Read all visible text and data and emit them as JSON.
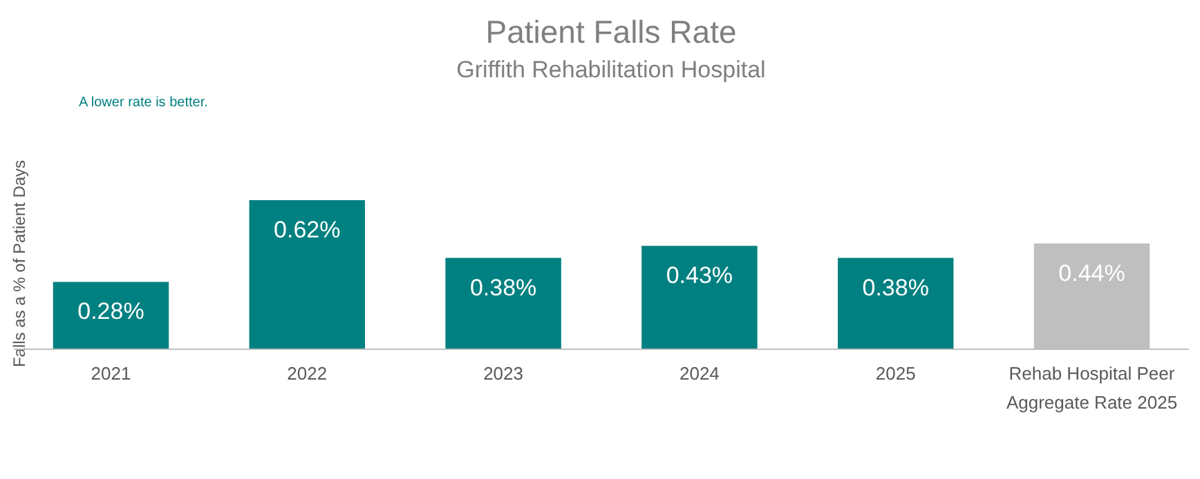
{
  "chart_data": {
    "type": "bar",
    "title": "Patient Falls Rate",
    "subtitle": "Griffith Rehabilitation Hospital",
    "ylabel": "Falls  as  a % of Patient Days",
    "annotations": [
      "A lower rate is better."
    ],
    "categories": [
      "2021",
      "2022",
      "2023",
      "2024",
      "2025",
      "Rehab Hospital Peer Aggregate Rate 2025"
    ],
    "values": [
      0.28,
      0.62,
      0.38,
      0.43,
      0.38,
      0.44
    ],
    "colors": [
      "#008080",
      "#008080",
      "#008080",
      "#008080",
      "#008080",
      "#bfbfbf"
    ],
    "value_labels": [
      "0.28%",
      "0.62%",
      "0.38%",
      "0.43%",
      "0.38%",
      "0.44%"
    ],
    "grid": false
  }
}
